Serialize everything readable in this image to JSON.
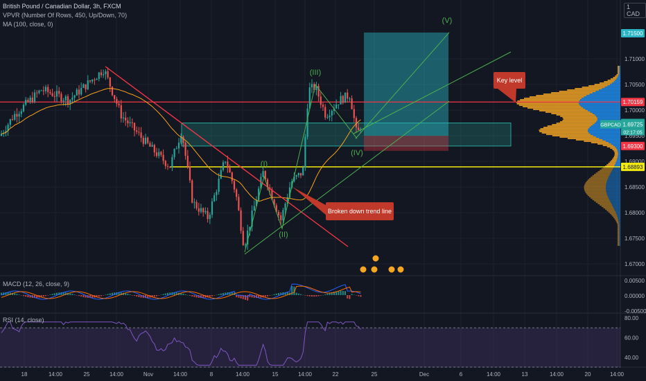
{
  "header": {
    "symbol_line": "British Pound / Canadian Dollar, 3h, FXCM",
    "vpvr_line": "VPVR (Number Of Rows, 450, Up/Down, 70)",
    "ma_line": "MA (100, close, 0)",
    "currency": "1 CAD"
  },
  "colors": {
    "background": "#131722",
    "grid": "#1e222d",
    "candle_up": "#26a69a",
    "candle_down": "#ef5350",
    "ma": "#f7a21b",
    "red_level": "#f23645",
    "yellow_level": "#f5eb0f",
    "trend_line": "#f23645",
    "support_line": "#4caf50",
    "box_fill": "rgba(38,166,154,0.25)",
    "box_border": "#26a69a",
    "target_fill": "rgba(41,181,196,0.45)",
    "stop_fill": "rgba(242,54,69,0.35)",
    "wave_label": "#4caf50",
    "callout": "#c0392b",
    "vpvr_up": "#1e88e5",
    "vpvr_down": "#f5a623",
    "macd_line": "#2962ff",
    "signal_line": "#ff6d00",
    "rsi_line": "#7e57c2",
    "rsi_band": "rgba(126,87,194,0.18)"
  },
  "chart_data": [
    {
      "type": "candlestick",
      "name": "GBPCAD 3h",
      "x_ticks": [
        "18",
        "14:00",
        "25",
        "14:00",
        "Nov",
        "14:00",
        "8",
        "14:00",
        "15",
        "14:00",
        "22",
        "25",
        "Dec",
        "6",
        "14:00",
        "13",
        "14:00",
        "20",
        "14:00"
      ],
      "y_ticks": [
        1.71,
        1.705,
        1.7,
        1.695,
        1.69,
        1.685,
        1.68,
        1.675,
        1.67
      ],
      "ylim": [
        1.668,
        1.72
      ],
      "price_labels": [
        {
          "value": 1.715,
          "text": "1.71500",
          "bg": "#29b5c4"
        },
        {
          "value": 1.70159,
          "text": "1.70159",
          "bg": "#f23645"
        },
        {
          "value": 1.6975,
          "text": "1.69750",
          "bg": "#26a69a"
        },
        {
          "value": 1.69725,
          "text": "1.69725",
          "bg": "#26a69a"
        },
        {
          "value": 1.693,
          "text": "1.69300",
          "bg": "#f23645"
        },
        {
          "value": 1.68893,
          "text": "1.68893",
          "bg": "#f5eb0f"
        }
      ],
      "symbol_badge": "GBPCAD",
      "countdown": "02:17:05",
      "horizontal_levels": [
        {
          "name": "key-level",
          "value": 1.70159
        },
        {
          "name": "support-level",
          "value": 1.68893
        }
      ],
      "zone": {
        "top": 1.6975,
        "bottom": 1.693
      },
      "position": {
        "entry": 1.695,
        "target": 1.715,
        "stop": 1.693
      },
      "wave_labels": [
        "(I)",
        "(II)",
        "(III)",
        "(IV)",
        "(V)"
      ],
      "callouts": [
        "Key level",
        "Broken down trend line"
      ]
    },
    {
      "type": "line",
      "name": "MACD",
      "legend": "MACD (12, 26, close, 9)",
      "y_ticks": [
        "0.00500",
        "0.00000",
        "-0.00500"
      ]
    },
    {
      "type": "line",
      "name": "RSI",
      "legend": "RSI (14, close)",
      "y_ticks": [
        "80.00",
        "60.00",
        "40.00"
      ],
      "ylim": [
        30,
        85
      ]
    }
  ]
}
